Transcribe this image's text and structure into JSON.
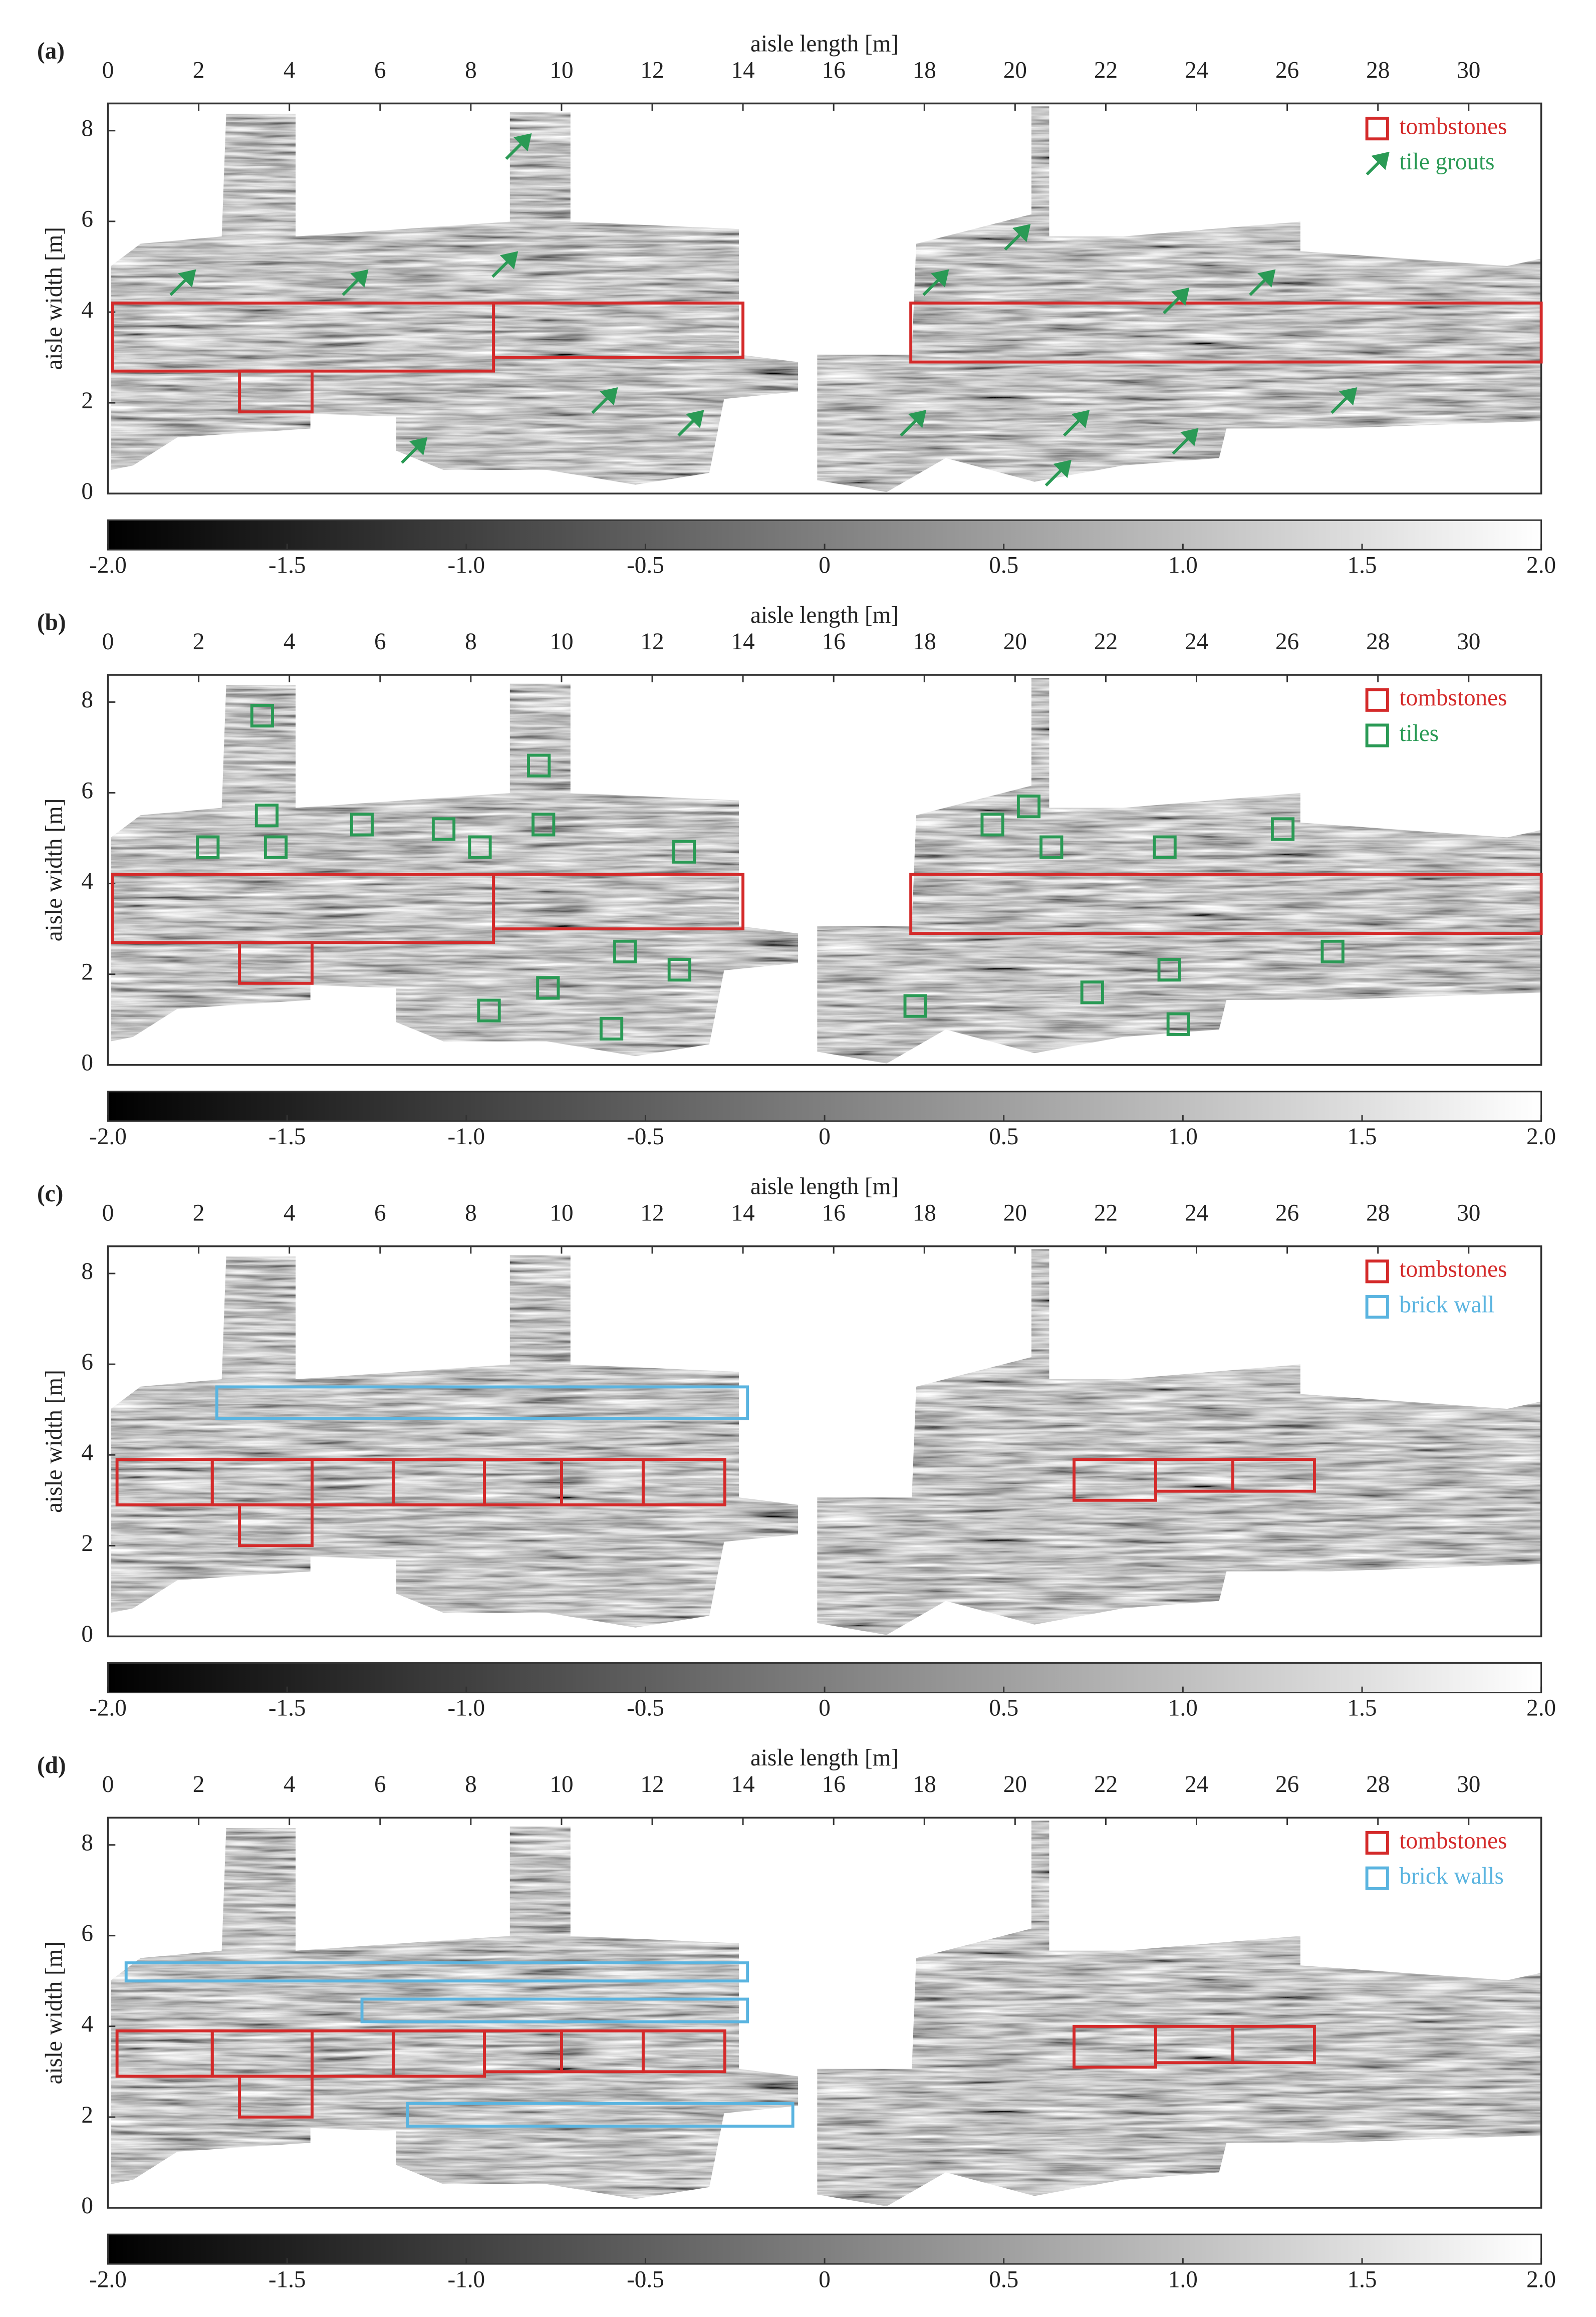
{
  "chart_data": [
    {
      "type": "image",
      "label": "(a)",
      "xlabel": "aisle length [m]",
      "ylabel": "aisle width [m]",
      "xlim": [
        0,
        31.6
      ],
      "xticks": [
        0,
        2,
        4,
        6,
        8,
        10,
        12,
        14,
        16,
        18,
        20,
        22,
        24,
        26,
        28,
        30
      ],
      "ylim": [
        0,
        8.6
      ],
      "yticks": [
        0,
        2,
        4,
        6,
        8
      ],
      "clim": [
        -2,
        2
      ],
      "cticks": [
        {
          "value": -2,
          "label": "-2.0"
        },
        -1.5,
        {
          "value": -1,
          "label": "-1.0"
        },
        -0.5,
        0,
        0.5,
        {
          "value": 1,
          "label": "1.0"
        },
        1.5,
        {
          "value": 2,
          "label": "2.0"
        }
      ],
      "legend": "upper right",
      "layers": [
        {
          "name": "tombstones",
          "color": "#d42a2a",
          "shape": "box",
          "boxes": [
            [
              0.1,
              8.5,
              2.7,
              4.2
            ],
            [
              8.5,
              14,
              3.0,
              4.2
            ],
            [
              2.9,
              4.5,
              1.8,
              2.7
            ],
            [
              17.7,
              31.6,
              2.9,
              4.2
            ]
          ]
        },
        {
          "name": "tile grouts",
          "color": "#2a9a55",
          "shape": "arrow",
          "points": [
            [
              1.9,
              4.9
            ],
            [
              5.7,
              4.9
            ],
            [
              9.0,
              5.3
            ],
            [
              9.3,
              7.9
            ],
            [
              11.2,
              2.3
            ],
            [
              7.0,
              1.2
            ],
            [
              13.1,
              1.8
            ],
            [
              18.5,
              4.9
            ],
            [
              20.3,
              5.9
            ],
            [
              23.8,
              4.5
            ],
            [
              25.7,
              4.9
            ],
            [
              27.5,
              2.3
            ],
            [
              18.0,
              1.8
            ],
            [
              21.6,
              1.8
            ],
            [
              21.2,
              0.7
            ],
            [
              24.0,
              1.4
            ]
          ]
        }
      ]
    },
    {
      "type": "image",
      "label": "(b)",
      "xlabel": "aisle length [m]",
      "ylabel": "aisle width [m]",
      "xlim": [
        0,
        31.6
      ],
      "xticks": [
        0,
        2,
        4,
        6,
        8,
        10,
        12,
        14,
        16,
        18,
        20,
        22,
        24,
        26,
        28,
        30
      ],
      "ylim": [
        0,
        8.6
      ],
      "yticks": [
        0,
        2,
        4,
        6,
        8
      ],
      "clim": [
        -2,
        2
      ],
      "cticks": [
        {
          "value": -2,
          "label": "-2.0"
        },
        -1.5,
        {
          "value": -1,
          "label": "-1.0"
        },
        -0.5,
        0,
        0.5,
        {
          "value": 1,
          "label": "1.0"
        },
        1.5,
        {
          "value": 2,
          "label": "2.0"
        }
      ],
      "legend": "upper right",
      "layers": [
        {
          "name": "tombstones",
          "color": "#d42a2a",
          "shape": "box",
          "boxes": [
            [
              0.1,
              8.5,
              2.7,
              4.2
            ],
            [
              8.5,
              14,
              3.0,
              4.2
            ],
            [
              2.9,
              4.5,
              1.8,
              2.7
            ],
            [
              17.7,
              31.6,
              2.9,
              4.2
            ]
          ]
        },
        {
          "name": "tiles",
          "color": "#2a9a55",
          "shape": "square",
          "points": [
            [
              3.4,
              7.7
            ],
            [
              3.5,
              5.5
            ],
            [
              3.7,
              4.8
            ],
            [
              5.6,
              5.3
            ],
            [
              2.2,
              4.8
            ],
            [
              7.4,
              5.2
            ],
            [
              8.2,
              4.8
            ],
            [
              9.5,
              6.6
            ],
            [
              9.6,
              5.3
            ],
            [
              12.7,
              4.7
            ],
            [
              11.4,
              2.5
            ],
            [
              12.6,
              2.1
            ],
            [
              8.4,
              1.2
            ],
            [
              9.7,
              1.7
            ],
            [
              11.1,
              0.8
            ],
            [
              19.5,
              5.3
            ],
            [
              20.3,
              5.7
            ],
            [
              20.8,
              4.8
            ],
            [
              23.3,
              4.8
            ],
            [
              25.9,
              5.2
            ],
            [
              27.0,
              2.5
            ],
            [
              21.7,
              1.6
            ],
            [
              23.4,
              2.1
            ],
            [
              23.6,
              0.9
            ],
            [
              17.8,
              1.3
            ]
          ]
        }
      ]
    },
    {
      "type": "image",
      "label": "(c)",
      "xlabel": "aisle length [m]",
      "ylabel": "aisle width [m]",
      "xlim": [
        0,
        31.6
      ],
      "xticks": [
        0,
        2,
        4,
        6,
        8,
        10,
        12,
        14,
        16,
        18,
        20,
        22,
        24,
        26,
        28,
        30
      ],
      "ylim": [
        0,
        8.6
      ],
      "yticks": [
        0,
        2,
        4,
        6,
        8
      ],
      "clim": [
        -2,
        2
      ],
      "cticks": [
        {
          "value": -2,
          "label": "-2.0"
        },
        -1.5,
        {
          "value": -1,
          "label": "-1.0"
        },
        -0.5,
        0,
        0.5,
        {
          "value": 1,
          "label": "1.0"
        },
        1.5,
        {
          "value": 2,
          "label": "2.0"
        }
      ],
      "legend": "upper right",
      "layers": [
        {
          "name": "tombstones",
          "color": "#d42a2a",
          "shape": "box",
          "boxes": [
            [
              0.2,
              2.3,
              2.9,
              3.9
            ],
            [
              2.3,
              4.5,
              2.9,
              3.9
            ],
            [
              4.5,
              6.3,
              2.9,
              3.9
            ],
            [
              6.3,
              8.3,
              2.9,
              3.9
            ],
            [
              8.3,
              10.0,
              2.9,
              3.9
            ],
            [
              10.0,
              11.8,
              2.9,
              3.9
            ],
            [
              11.8,
              13.6,
              2.9,
              3.9
            ],
            [
              2.9,
              4.5,
              2.0,
              2.9
            ],
            [
              21.3,
              23.1,
              3.0,
              3.9
            ],
            [
              23.1,
              24.8,
              3.2,
              3.9
            ],
            [
              24.8,
              26.6,
              3.2,
              3.9
            ]
          ]
        },
        {
          "name": "brick wall",
          "color": "#5ab4e0",
          "shape": "box",
          "boxes": [
            [
              2.4,
              14.1,
              4.8,
              5.5
            ]
          ]
        }
      ]
    },
    {
      "type": "image",
      "label": "(d)",
      "xlabel": "aisle length [m]",
      "ylabel": "aisle width [m]",
      "xlim": [
        0,
        31.6
      ],
      "xticks": [
        0,
        2,
        4,
        6,
        8,
        10,
        12,
        14,
        16,
        18,
        20,
        22,
        24,
        26,
        28,
        30
      ],
      "ylim": [
        0,
        8.6
      ],
      "yticks": [
        0,
        2,
        4,
        6,
        8
      ],
      "clim": [
        -2,
        2
      ],
      "cticks": [
        {
          "value": -2,
          "label": "-2.0"
        },
        -1.5,
        {
          "value": -1,
          "label": "-1.0"
        },
        -0.5,
        0,
        0.5,
        {
          "value": 1,
          "label": "1.0"
        },
        1.5,
        {
          "value": 2,
          "label": "2.0"
        }
      ],
      "legend": "upper right",
      "layers": [
        {
          "name": "tombstones",
          "color": "#d42a2a",
          "shape": "box",
          "boxes": [
            [
              0.2,
              2.3,
              2.9,
              3.9
            ],
            [
              2.3,
              4.5,
              2.9,
              3.9
            ],
            [
              4.5,
              6.3,
              2.9,
              3.9
            ],
            [
              6.3,
              8.3,
              2.9,
              3.9
            ],
            [
              8.3,
              10.0,
              3.0,
              3.9
            ],
            [
              10.0,
              11.8,
              3.0,
              3.9
            ],
            [
              11.8,
              13.6,
              3.0,
              3.9
            ],
            [
              2.9,
              4.5,
              2.0,
              2.9
            ],
            [
              21.3,
              23.1,
              3.1,
              4.0
            ],
            [
              23.1,
              24.8,
              3.2,
              4.0
            ],
            [
              24.8,
              26.6,
              3.2,
              4.0
            ]
          ]
        },
        {
          "name": "brick walls",
          "color": "#5ab4e0",
          "shape": "box",
          "boxes": [
            [
              0.4,
              14.1,
              5.0,
              5.4
            ],
            [
              5.6,
              14.1,
              4.1,
              4.6
            ],
            [
              6.6,
              15.1,
              1.8,
              2.3
            ]
          ]
        }
      ]
    }
  ]
}
